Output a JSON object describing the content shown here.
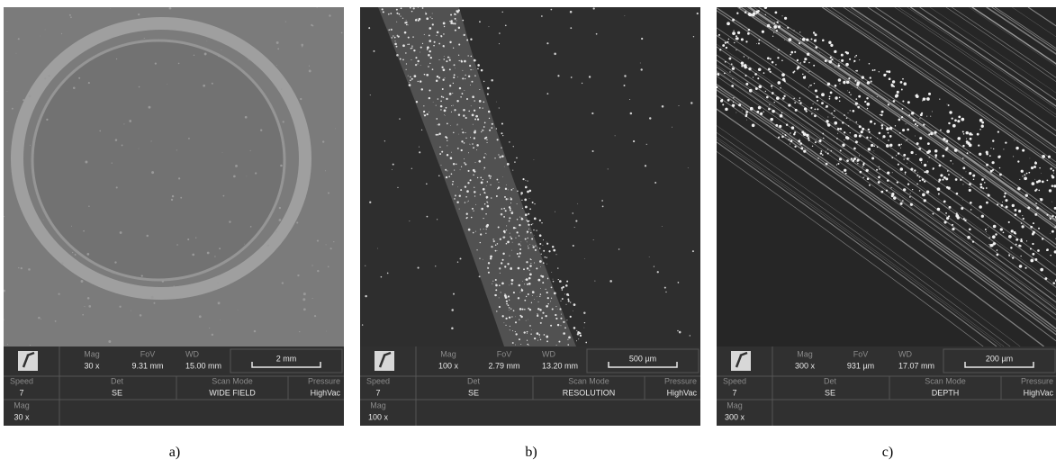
{
  "labels": {
    "mag": "Mag",
    "fov": "FoV",
    "wd": "WD",
    "speed": "Speed",
    "det": "Det",
    "scan_mode": "Scan Mode",
    "pressure": "Pressure"
  },
  "panels": [
    {
      "mag": "30 x",
      "fov": "9.31 mm",
      "wd": "15.00 mm",
      "scale": "2 mm",
      "speed": "7",
      "det": "SE",
      "scan_mode": "WIDE FIELD",
      "pressure": "HighVac",
      "mag_bottom": "30 x",
      "caption": "a)"
    },
    {
      "mag": "100 x",
      "fov": "2.79 mm",
      "wd": "13.20 mm",
      "scale": "500 µm",
      "speed": "7",
      "det": "SE",
      "scan_mode": "RESOLUTION",
      "pressure": "HighVac",
      "mag_bottom": "100 x",
      "caption": "b)"
    },
    {
      "mag": "300 x",
      "fov": "931 µm",
      "wd": "17.07 mm",
      "scale": "200 µm",
      "speed": "7",
      "det": "SE",
      "scan_mode": "DEPTH",
      "pressure": "HighVac",
      "mag_bottom": "300 x",
      "caption": "c)"
    }
  ]
}
